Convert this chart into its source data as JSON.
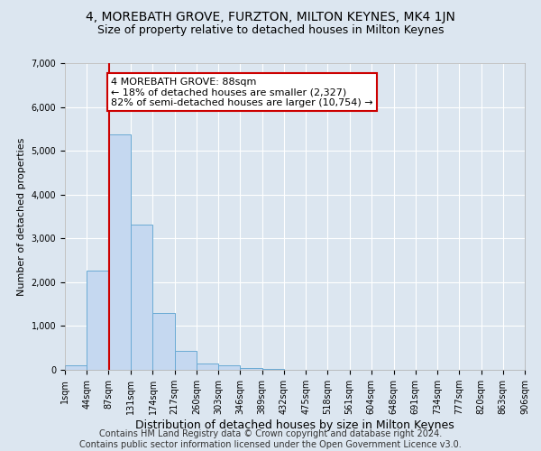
{
  "title": "4, MOREBATH GROVE, FURZTON, MILTON KEYNES, MK4 1JN",
  "subtitle": "Size of property relative to detached houses in Milton Keynes",
  "xlabel": "Distribution of detached houses by size in Milton Keynes",
  "ylabel": "Number of detached properties",
  "bin_edges": [
    1,
    44,
    87,
    131,
    174,
    217,
    260,
    303,
    346,
    389,
    432,
    475,
    518,
    561,
    604,
    648,
    691,
    734,
    777,
    820,
    863
  ],
  "bar_heights": [
    100,
    2270,
    5380,
    3320,
    1300,
    430,
    140,
    100,
    50,
    20,
    10,
    5,
    3,
    2,
    1,
    1,
    0,
    0,
    0,
    0
  ],
  "bar_color": "#c5d8f0",
  "bar_edgecolor": "#6aaad4",
  "property_size": 88,
  "property_line_color": "#cc0000",
  "annotation_text": "4 MOREBATH GROVE: 88sqm\n← 18% of detached houses are smaller (2,327)\n82% of semi-detached houses are larger (10,754) →",
  "annotation_box_color": "#cc0000",
  "ylim": [
    0,
    7000
  ],
  "yticks": [
    0,
    1000,
    2000,
    3000,
    4000,
    5000,
    6000,
    7000
  ],
  "footer_text": "Contains HM Land Registry data © Crown copyright and database right 2024.\nContains public sector information licensed under the Open Government Licence v3.0.",
  "background_color": "#dce6f0",
  "plot_background_color": "#dce6f0",
  "grid_color": "#ffffff",
  "title_fontsize": 10,
  "subtitle_fontsize": 9,
  "xlabel_fontsize": 9,
  "ylabel_fontsize": 8,
  "tick_fontsize": 7,
  "footer_fontsize": 7,
  "annotation_fontsize": 8
}
